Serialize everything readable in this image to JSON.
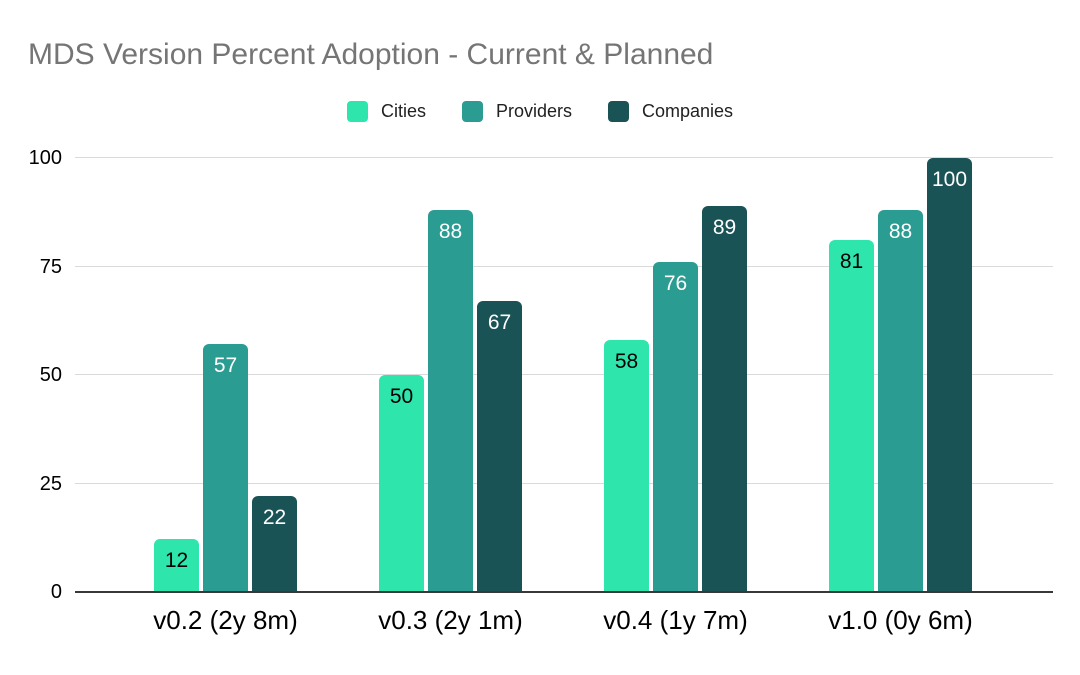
{
  "chart_data": {
    "type": "bar",
    "title": "MDS Version Percent Adoption - Current & Planned",
    "categories": [
      "v0.2 (2y 8m)",
      "v0.3 (2y 1m)",
      "v0.4 (1y 7m)",
      "v1.0 (0y 6m)"
    ],
    "series": [
      {
        "name": "Cities",
        "color": "#2ee5ac",
        "label_color": "#000000",
        "values": [
          12,
          50,
          58,
          81
        ]
      },
      {
        "name": "Providers",
        "color": "#2b9c92",
        "label_color": "#ffffff",
        "values": [
          57,
          88,
          76,
          88
        ]
      },
      {
        "name": "Companies",
        "color": "#1a5356",
        "label_color": "#ffffff",
        "values": [
          22,
          67,
          89,
          100
        ]
      }
    ],
    "yticks": [
      0,
      25,
      50,
      75,
      100
    ],
    "ylim": [
      0,
      100
    ],
    "grid": true,
    "legend_position": "top",
    "bar_value_labels": true,
    "style": {
      "title_color": "#757575",
      "axis_label_color": "#000000",
      "gridline_color": "#dadada",
      "baseline_color": "#383838",
      "background": "#ffffff"
    }
  }
}
